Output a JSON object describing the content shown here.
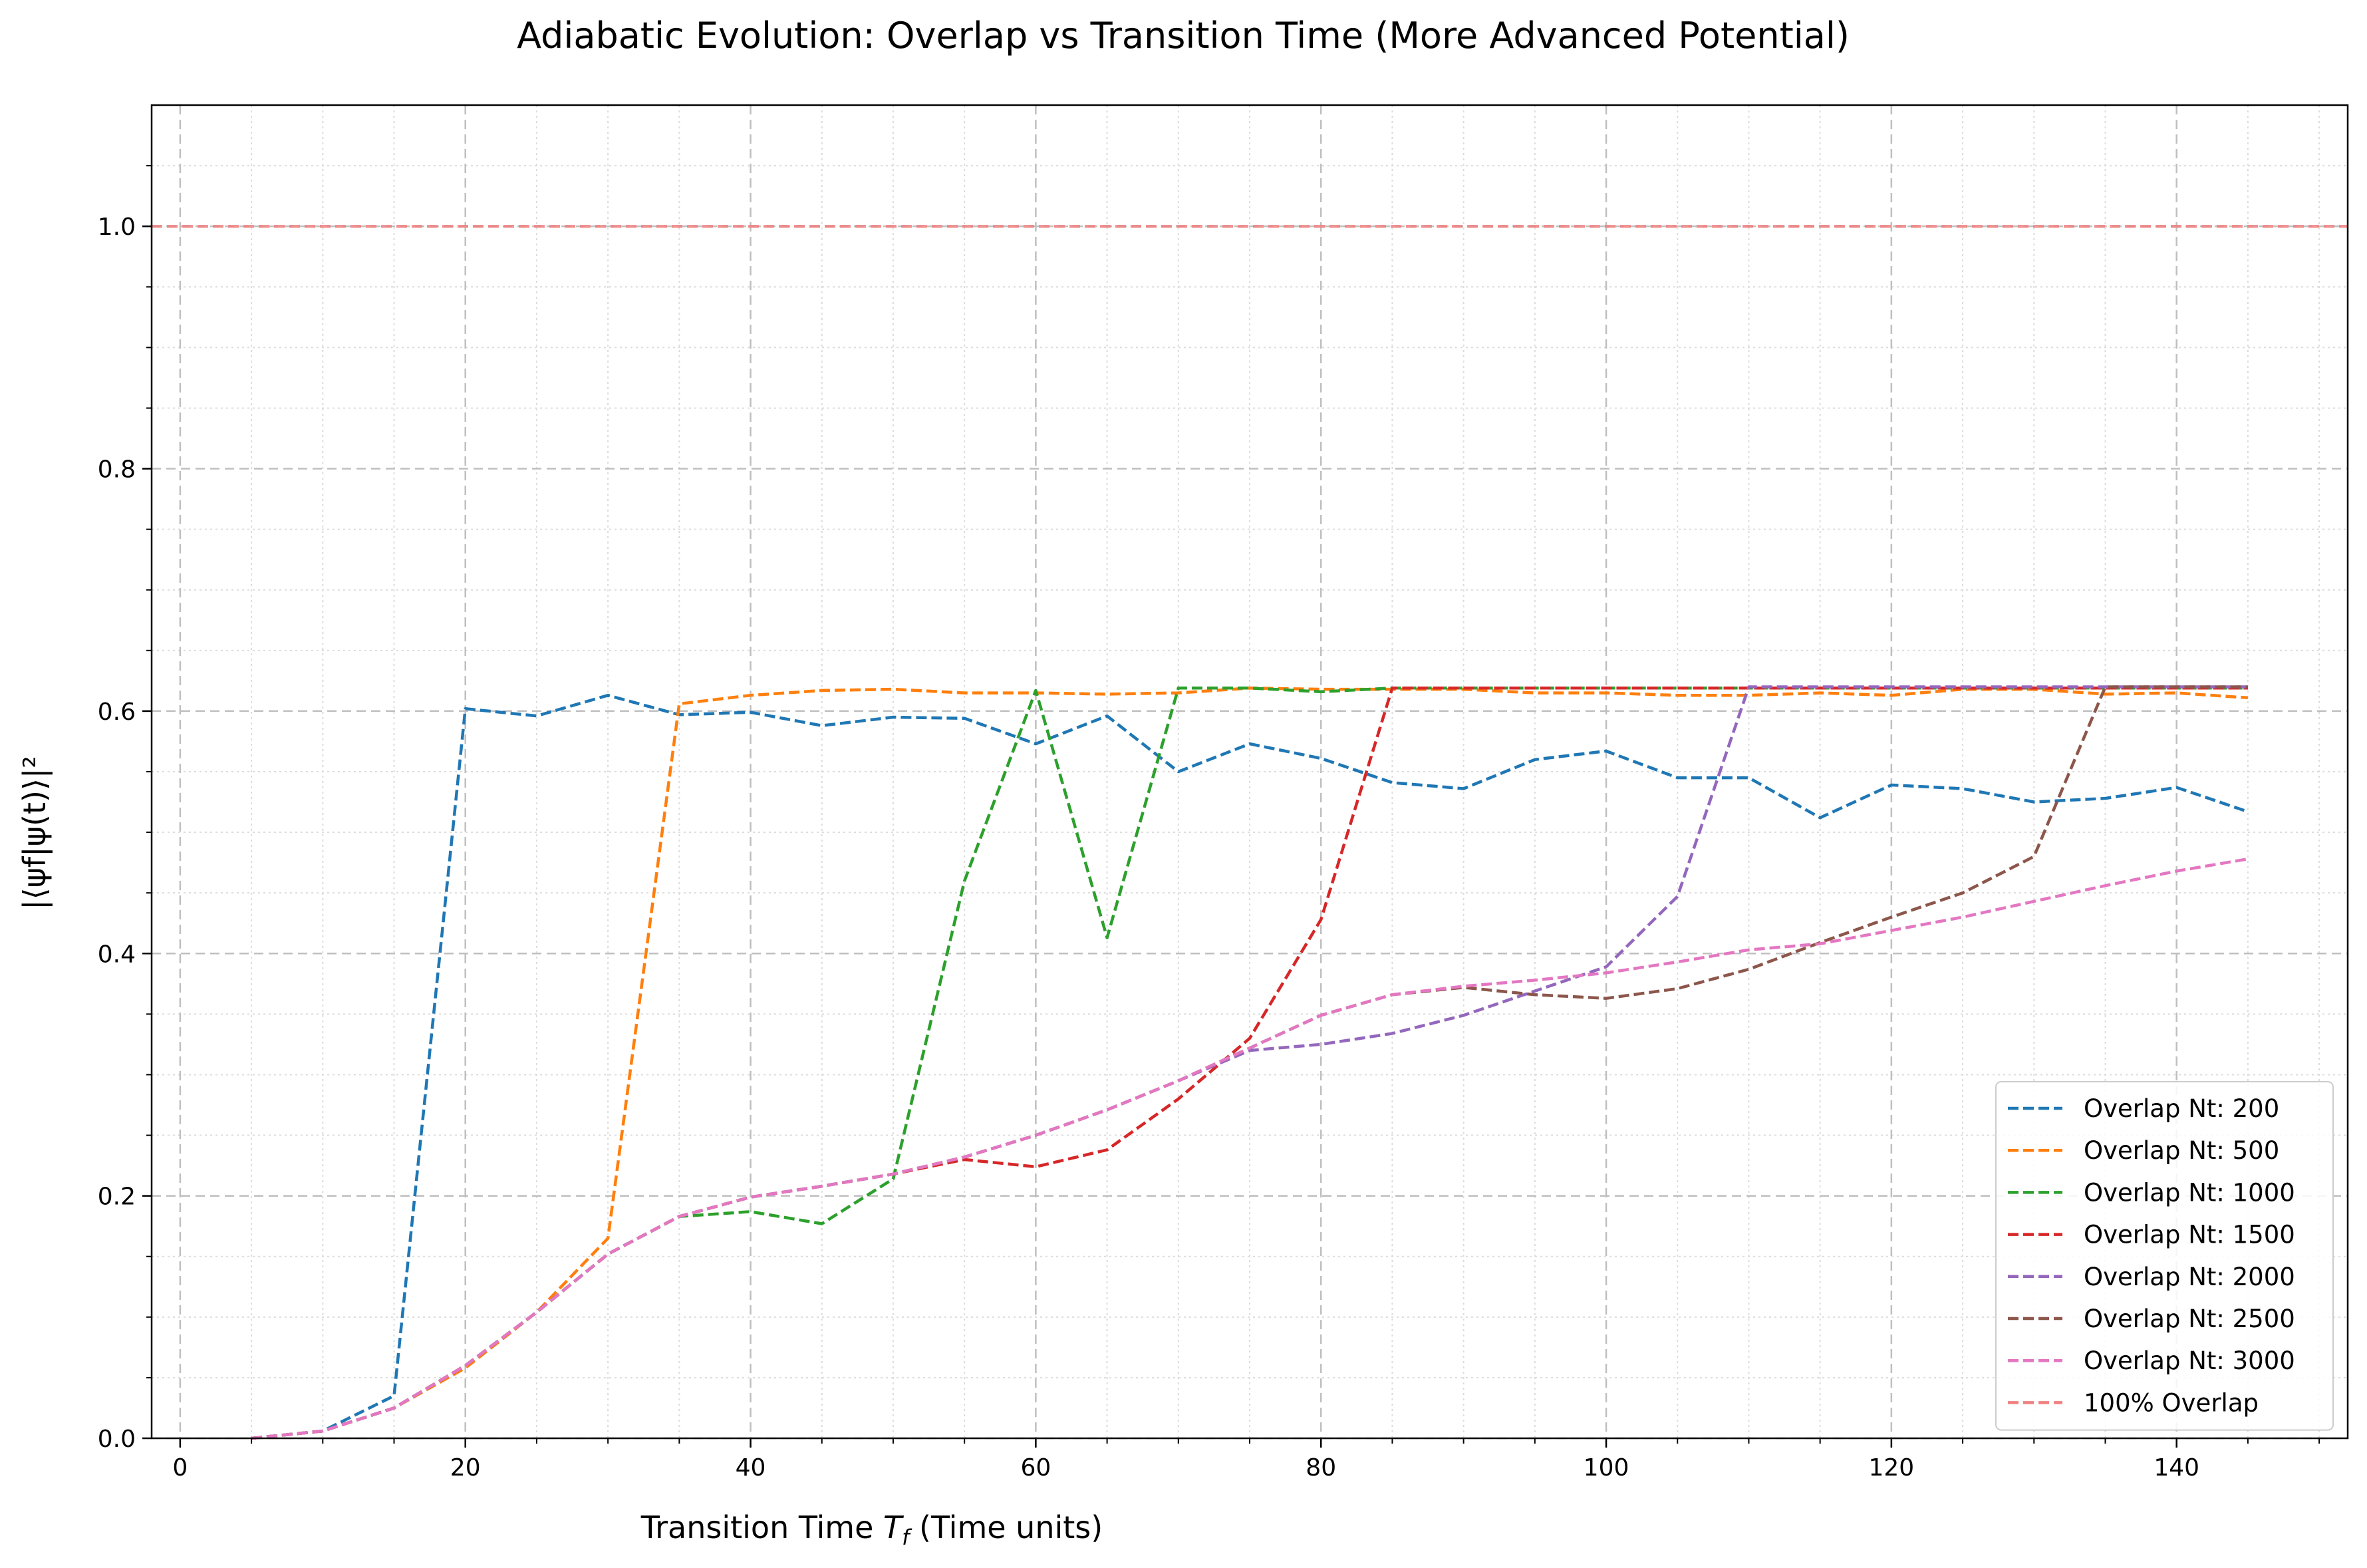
{
  "chart_data": {
    "type": "line",
    "title": "Adiabatic Evolution: Overlap vs Transition Time (More Advanced Potential)",
    "xlabel": "Transition Time T_f (Time units)",
    "xlabel_parts": {
      "pre": "Transition Time ",
      "var": "T",
      "sub": "f",
      "post": " (Time units)"
    },
    "ylabel": "|⟨ψf|ψ(t)⟩|²",
    "xlim": [
      -2,
      152
    ],
    "ylim": [
      0.0,
      1.1
    ],
    "x_ticks": [
      0,
      20,
      40,
      60,
      80,
      100,
      120,
      140
    ],
    "x_tick_labels": [
      "0",
      "20",
      "40",
      "60",
      "80",
      "100",
      "120",
      "140"
    ],
    "y_ticks": [
      0.0,
      0.2,
      0.4,
      0.6,
      0.8,
      1.0
    ],
    "y_tick_labels": [
      "0.0",
      "0.2",
      "0.4",
      "0.6",
      "0.8",
      "1.0"
    ],
    "grid": true,
    "minor_grid": true,
    "legend_position": "lower-right",
    "x": [
      5,
      10,
      15,
      20,
      25,
      30,
      35,
      40,
      45,
      50,
      55,
      60,
      65,
      70,
      75,
      80,
      85,
      90,
      95,
      100,
      105,
      110,
      115,
      120,
      125,
      130,
      135,
      140,
      145
    ],
    "series": [
      {
        "name": "Overlap Nt: 200",
        "color": "#1f77b4",
        "values": [
          0.0,
          0.006,
          0.035,
          0.602,
          0.596,
          0.613,
          0.597,
          0.599,
          0.588,
          0.595,
          0.594,
          0.573,
          0.596,
          0.55,
          0.573,
          0.561,
          0.541,
          0.536,
          0.56,
          0.567,
          0.545,
          0.545,
          0.512,
          0.539,
          0.536,
          0.525,
          0.528,
          0.537,
          0.517
        ]
      },
      {
        "name": "Overlap Nt: 500",
        "color": "#ff7f0e",
        "values": [
          0.0,
          0.006,
          0.025,
          0.058,
          0.104,
          0.165,
          0.606,
          0.613,
          0.617,
          0.618,
          0.615,
          0.615,
          0.614,
          0.615,
          0.619,
          0.618,
          0.618,
          0.618,
          0.615,
          0.615,
          0.613,
          0.613,
          0.615,
          0.613,
          0.618,
          0.618,
          0.614,
          0.615,
          0.611
        ]
      },
      {
        "name": "Overlap Nt: 1000",
        "color": "#2ca02c",
        "values": [
          0.0,
          0.006,
          0.025,
          0.06,
          0.104,
          0.152,
          0.183,
          0.187,
          0.177,
          0.214,
          0.46,
          0.617,
          0.413,
          0.619,
          0.619,
          0.616,
          0.619,
          0.619,
          0.619,
          0.619,
          0.619,
          0.619,
          0.619,
          0.619,
          0.619,
          0.619,
          0.619,
          0.619,
          0.619
        ]
      },
      {
        "name": "Overlap Nt: 1500",
        "color": "#d62728",
        "values": [
          0.0,
          0.006,
          0.025,
          0.06,
          0.104,
          0.152,
          0.183,
          0.199,
          0.208,
          0.218,
          0.23,
          0.224,
          0.238,
          0.28,
          0.33,
          0.428,
          0.619,
          0.619,
          0.619,
          0.619,
          0.619,
          0.619,
          0.619,
          0.619,
          0.619,
          0.619,
          0.619,
          0.619,
          0.619
        ]
      },
      {
        "name": "Overlap Nt: 2000",
        "color": "#9467bd",
        "values": [
          0.0,
          0.006,
          0.025,
          0.06,
          0.104,
          0.152,
          0.183,
          0.199,
          0.208,
          0.218,
          0.232,
          0.25,
          0.271,
          0.295,
          0.32,
          0.325,
          0.334,
          0.349,
          0.369,
          0.389,
          0.447,
          0.62,
          0.62,
          0.62,
          0.62,
          0.62,
          0.62,
          0.62,
          0.62
        ]
      },
      {
        "name": "Overlap Nt: 2500",
        "color": "#8c564b",
        "values": [
          0.0,
          0.006,
          0.025,
          0.06,
          0.104,
          0.152,
          0.183,
          0.199,
          0.208,
          0.218,
          0.232,
          0.25,
          0.271,
          0.295,
          0.322,
          0.349,
          0.366,
          0.372,
          0.366,
          0.363,
          0.371,
          0.387,
          0.409,
          0.43,
          0.45,
          0.48,
          0.62,
          0.62,
          0.62
        ]
      },
      {
        "name": "Overlap Nt: 3000",
        "color": "#e377c2",
        "values": [
          0.0,
          0.006,
          0.025,
          0.06,
          0.104,
          0.152,
          0.183,
          0.199,
          0.208,
          0.218,
          0.232,
          0.25,
          0.271,
          0.295,
          0.322,
          0.349,
          0.366,
          0.373,
          0.378,
          0.384,
          0.393,
          0.403,
          0.408,
          0.419,
          0.43,
          0.443,
          0.456,
          0.468,
          0.478
        ]
      },
      {
        "name": "100% Overlap",
        "color": "#f08080",
        "constant": 1.0
      }
    ]
  }
}
